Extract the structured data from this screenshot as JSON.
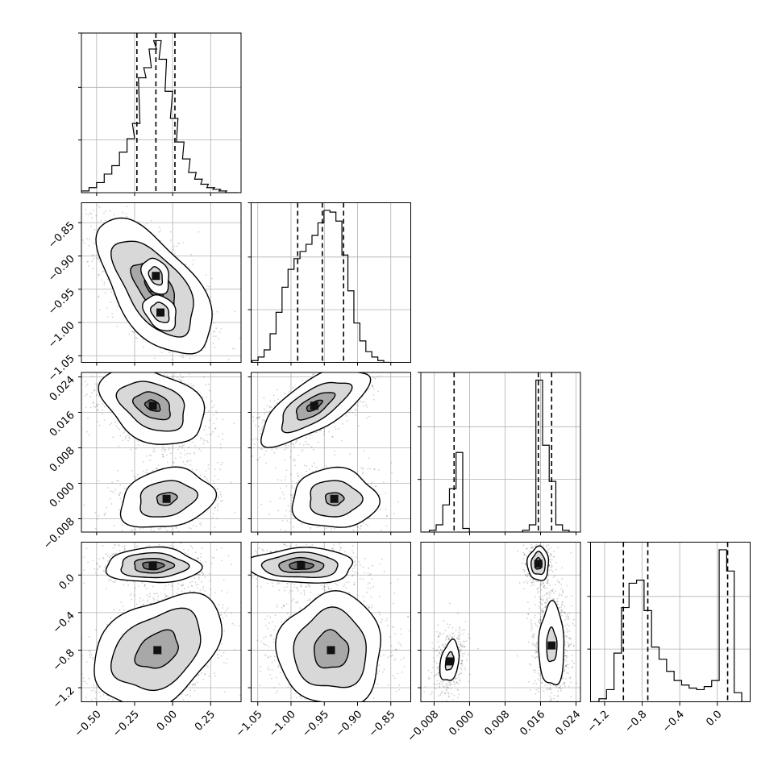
{
  "chart_data": {
    "type": "corner",
    "parameters": [
      {
        "range": [
          -0.6,
          0.45
        ],
        "ticks": [
          -0.5,
          -0.25,
          0.0,
          0.25
        ],
        "tick_labels": [
          "−0.50",
          "−0.25",
          "0.00",
          "0.25"
        ],
        "quantiles": [
          -0.235,
          -0.11,
          0.015
        ],
        "hist": {
          "x": [
            -0.575,
            -0.525,
            -0.475,
            -0.425,
            -0.375,
            -0.325,
            -0.275,
            -0.24,
            -0.2,
            -0.165,
            -0.13,
            -0.1,
            -0.065,
            -0.025,
            0.01,
            0.05,
            0.09,
            0.13,
            0.17,
            0.21,
            0.25,
            0.29,
            0.33,
            0.37,
            0.41
          ],
          "y": [
            0.01,
            0.03,
            0.06,
            0.11,
            0.16,
            0.24,
            0.32,
            0.41,
            0.68,
            0.74,
            0.85,
            0.9,
            0.79,
            0.6,
            0.44,
            0.3,
            0.2,
            0.12,
            0.08,
            0.05,
            0.03,
            0.02,
            0.01,
            0.0,
            0.0
          ]
        }
      },
      {
        "range": [
          -1.06,
          -0.82
        ],
        "ticks": [
          -1.05,
          -1.0,
          -0.95,
          -0.9,
          -0.85
        ],
        "tick_labels": [
          "−1.05",
          "−1.00",
          "−0.95",
          "−0.90",
          "−0.85"
        ],
        "quantiles": [
          -0.99,
          -0.953,
          -0.921
        ],
        "hist": {
          "x": [
            -1.054,
            -1.045,
            -1.036,
            -1.027,
            -1.018,
            -1.009,
            -1.0,
            -0.991,
            -0.982,
            -0.973,
            -0.964,
            -0.955,
            -0.946,
            -0.937,
            -0.928,
            -0.919,
            -0.91,
            -0.901,
            -0.892,
            -0.883,
            -0.874,
            -0.865,
            -0.856
          ],
          "y": [
            0.01,
            0.03,
            0.07,
            0.16,
            0.28,
            0.42,
            0.52,
            0.58,
            0.62,
            0.66,
            0.71,
            0.78,
            0.85,
            0.84,
            0.79,
            0.6,
            0.4,
            0.22,
            0.12,
            0.06,
            0.03,
            0.01,
            0.0
          ]
        }
      },
      {
        "range": [
          -0.011,
          0.025
        ],
        "ticks": [
          -0.008,
          0.0,
          0.008,
          0.016,
          0.024
        ],
        "tick_labels": [
          "−0.008",
          "0.000",
          "0.008",
          "0.016",
          "0.024"
        ],
        "quantiles": [
          -0.0035,
          0.0155,
          0.0185
        ],
        "hist": {
          "x": [
            -0.0098,
            -0.0083,
            -0.0068,
            -0.0053,
            -0.0038,
            -0.0023,
            -0.0008,
            0.0007,
            0.0022,
            0.0037,
            0.0052,
            0.0067,
            0.0082,
            0.0097,
            0.0112,
            0.0127,
            0.0142,
            0.0157,
            0.0172,
            0.0187,
            0.0202,
            0.0217,
            0.0232
          ],
          "y": [
            0.0,
            0.01,
            0.04,
            0.15,
            0.24,
            0.44,
            0.02,
            0.0,
            0.0,
            0.0,
            0.0,
            0.0,
            0.0,
            0.0,
            0.0,
            0.01,
            0.04,
            0.84,
            0.48,
            0.28,
            0.04,
            0.01,
            0.0
          ]
        }
      },
      {
        "range": [
          -1.35,
          0.35
        ],
        "ticks": [
          -1.2,
          -0.8,
          -0.4,
          0.0
        ],
        "tick_labels": [
          "−1.2",
          "−0.8",
          "−0.4",
          "0.0"
        ],
        "quantiles": [
          -1.0,
          -0.74,
          0.11
        ],
        "hist": {
          "x": [
            -1.3,
            -1.22,
            -1.14,
            -1.06,
            -0.98,
            -0.9,
            -0.82,
            -0.74,
            -0.66,
            -0.58,
            -0.5,
            -0.42,
            -0.34,
            -0.26,
            -0.18,
            -0.1,
            -0.02,
            0.06,
            0.14,
            0.22,
            0.3
          ],
          "y": [
            0.0,
            0.02,
            0.08,
            0.32,
            0.62,
            0.78,
            0.8,
            0.6,
            0.36,
            0.28,
            0.2,
            0.14,
            0.11,
            0.09,
            0.08,
            0.1,
            0.14,
            1.0,
            0.86,
            0.06,
            0.0
          ]
        }
      }
    ],
    "panels_2d": [
      {
        "row": 1,
        "col": 0,
        "blobs": [
          {
            "cx": -0.12,
            "cy": -0.948,
            "sx": 0.11,
            "sy": 0.03,
            "rho": -0.6,
            "n": 1500,
            "levels": [
              3.4,
              2.4,
              1.3,
              0.55
            ]
          },
          {
            "cx": -0.08,
            "cy": -0.985,
            "sx": 0.06,
            "sy": 0.015,
            "rho": -0.3,
            "n": 300,
            "levels": [
              1.8,
              1.0
            ]
          },
          {
            "cx": -0.11,
            "cy": -0.93,
            "sx": 0.05,
            "sy": 0.015,
            "rho": -0.3,
            "n": 300,
            "levels": [
              1.8,
              0.9
            ]
          }
        ]
      },
      {
        "row": 2,
        "col": 0,
        "blobs": [
          {
            "cx": -0.13,
            "cy": 0.0175,
            "sx": 0.11,
            "sy": 0.0028,
            "rho": -0.35,
            "n": 1500,
            "levels": [
              3.1,
              2.0,
              1.1,
              0.45
            ]
          },
          {
            "cx": -0.04,
            "cy": -0.0035,
            "sx": 0.11,
            "sy": 0.0024,
            "rho": 0.2,
            "n": 700,
            "levels": [
              2.8,
              1.7,
              0.6
            ]
          }
        ]
      },
      {
        "row": 2,
        "col": 1,
        "blobs": [
          {
            "cx": -0.965,
            "cy": 0.0175,
            "sx": 0.026,
            "sy": 0.0028,
            "rho": 0.7,
            "n": 1500,
            "levels": [
              3.1,
              2.0,
              1.1,
              0.45
            ]
          },
          {
            "cx": -0.935,
            "cy": -0.0035,
            "sx": 0.023,
            "sy": 0.0024,
            "rho": 0.0,
            "n": 700,
            "levels": [
              2.8,
              1.7,
              0.6
            ]
          }
        ]
      },
      {
        "row": 3,
        "col": 0,
        "blobs": [
          {
            "cx": -0.13,
            "cy": 0.1,
            "sx": 0.1,
            "sy": 0.06,
            "rho": 0.0,
            "n": 900,
            "levels": [
              3.1,
              2.2,
              1.3,
              0.7
            ]
          },
          {
            "cx": -0.1,
            "cy": -0.8,
            "sx": 0.14,
            "sy": 0.2,
            "rho": 0.35,
            "n": 1400,
            "levels": [
              3.0,
              2.1,
              1.0
            ]
          }
        ]
      },
      {
        "row": 3,
        "col": 1,
        "blobs": [
          {
            "cx": -0.985,
            "cy": 0.1,
            "sx": 0.026,
            "sy": 0.06,
            "rho": 0.0,
            "n": 900,
            "levels": [
              3.1,
              2.2,
              1.3,
              0.7
            ]
          },
          {
            "cx": -0.94,
            "cy": -0.8,
            "sx": 0.026,
            "sy": 0.2,
            "rho": 0.0,
            "n": 1400,
            "levels": [
              3.0,
              2.1,
              1.0
            ]
          }
        ]
      },
      {
        "row": 3,
        "col": 2,
        "blobs": [
          {
            "cx": 0.0155,
            "cy": 0.12,
            "sx": 0.0008,
            "sy": 0.06,
            "rho": 0.0,
            "n": 700,
            "levels": [
              3.0,
              2.0,
              1.0
            ]
          },
          {
            "cx": 0.0185,
            "cy": -0.75,
            "sx": 0.0013,
            "sy": 0.2,
            "rho": 0.0,
            "n": 1000,
            "levels": [
              2.2,
              0.9
            ]
          },
          {
            "cx": -0.0045,
            "cy": -0.92,
            "sx": 0.0012,
            "sy": 0.12,
            "rho": 0.3,
            "n": 500,
            "levels": [
              1.8,
              0.8
            ]
          }
        ]
      }
    ]
  }
}
